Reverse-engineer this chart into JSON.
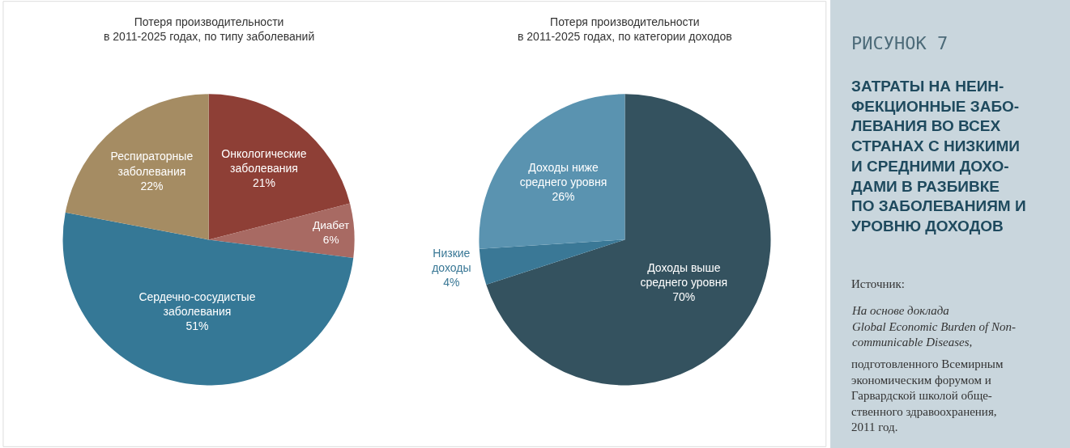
{
  "chart_data": [
    {
      "type": "pie",
      "title": "Потеря производительности\nв 2011-2025 годах, по типу заболеваний",
      "categories": [
        "Онкологические\nзаболевания",
        "Диабет",
        "Сердечно-сосудистые\nзаболевания",
        "Респираторные\nзаболевания"
      ],
      "values": [
        21,
        6,
        51,
        22
      ],
      "value_labels": [
        "21%",
        "6%",
        "51%",
        "22%"
      ],
      "colors": [
        "#8e3f36",
        "#a86a63",
        "#357896",
        "#a58c63"
      ]
    },
    {
      "type": "pie",
      "title": "Потеря производительности\nв 2011-2025 годах, по категории доходов",
      "categories": [
        "Доходы выше\nсреднего уровня",
        "Низкие\nдоходы",
        "Доходы ниже\nсреднего уровня"
      ],
      "values": [
        70,
        4,
        26
      ],
      "value_labels": [
        "70%",
        "4%",
        "26%"
      ],
      "colors": [
        "#34525f",
        "#3a7896",
        "#5a93b0"
      ]
    },
    {
      "type": "other",
      "title": "РИСУНОК 7",
      "subtitle": "ЗАТРАТЫ НА НЕИН-\nФЕКЦИОННЫЕ ЗАБО-\nЛЕВАНИЯ ВО ВСЕХ\nСТРАНАХ С НИЗКИМИ\nИ СРЕДНИМИ ДОХО-\nДАМИ В РАЗБИВКЕ\nПО ЗАБОЛЕВАНИЯМ И\nУРОВНЮ ДОХОДОВ",
      "annotations": [
        "Источник:",
        "На основе доклада\nGlobal Economic Burden of Non-\ncommunicable Diseases,",
        "подготовленного Всемирным\nэкономическим форумом и\nГарвардской школой обще-\nственного здравоохранения,\n2011 год."
      ]
    }
  ]
}
